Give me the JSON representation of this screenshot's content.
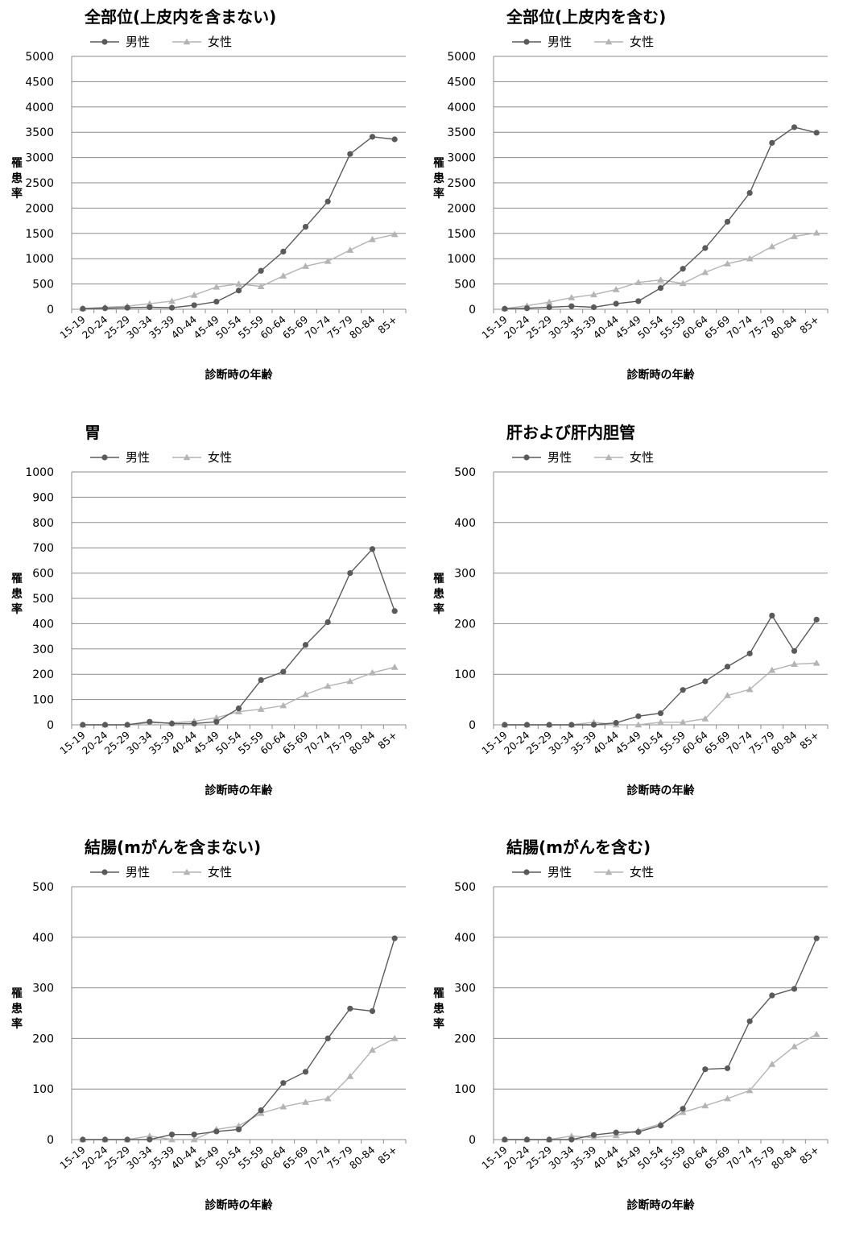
{
  "colors": {
    "male": "#5a5a5a",
    "female": "#b4b4b4",
    "grid": "#8c8c8c",
    "axis": "#8c8c8c"
  },
  "legend": {
    "male": "男性",
    "female": "女性"
  },
  "ylabel_chars": [
    "罹",
    "患",
    "率"
  ],
  "xlabel": "診断時の年齢",
  "categories": [
    "15-19",
    "20-24",
    "25-29",
    "30-34",
    "35-39",
    "40-44",
    "45-49",
    "50-54",
    "55-59",
    "60-64",
    "65-69",
    "70-74",
    "75-79",
    "80-84",
    "85+"
  ],
  "chart_data": [
    {
      "type": "line",
      "title": "全部位(上皮内を含まない)",
      "ylim": [
        0,
        5000
      ],
      "yticks": [
        0,
        500,
        1000,
        1500,
        2000,
        2500,
        3000,
        3500,
        4000,
        4500,
        5000
      ],
      "series": [
        {
          "name": "男性",
          "values": [
            10,
            20,
            30,
            40,
            30,
            80,
            150,
            370,
            760,
            1140,
            1630,
            2130,
            3070,
            3410,
            3360
          ]
        },
        {
          "name": "女性",
          "values": [
            15,
            40,
            60,
            110,
            160,
            280,
            440,
            500,
            450,
            660,
            850,
            950,
            1170,
            1380,
            1480
          ]
        }
      ]
    },
    {
      "type": "line",
      "title": "全部位(上皮内を含む)",
      "ylim": [
        0,
        5000
      ],
      "yticks": [
        0,
        500,
        1000,
        1500,
        2000,
        2500,
        3000,
        3500,
        4000,
        4500,
        5000
      ],
      "series": [
        {
          "name": "男性",
          "values": [
            10,
            20,
            40,
            60,
            40,
            110,
            160,
            420,
            800,
            1210,
            1730,
            2300,
            3290,
            3600,
            3490
          ]
        },
        {
          "name": "女性",
          "values": [
            15,
            70,
            140,
            230,
            290,
            390,
            530,
            580,
            510,
            730,
            900,
            1000,
            1240,
            1440,
            1510
          ]
        }
      ]
    },
    {
      "type": "line",
      "title": "胃",
      "ylim": [
        0,
        1000
      ],
      "yticks": [
        0,
        100,
        200,
        300,
        400,
        500,
        600,
        700,
        800,
        900,
        1000
      ],
      "series": [
        {
          "name": "男性",
          "values": [
            0,
            0,
            0,
            12,
            5,
            5,
            12,
            65,
            177,
            210,
            316,
            406,
            600,
            695,
            450
          ]
        },
        {
          "name": "女性",
          "values": [
            0,
            0,
            0,
            8,
            8,
            14,
            28,
            52,
            62,
            76,
            120,
            153,
            172,
            206,
            228
          ]
        }
      ]
    },
    {
      "type": "line",
      "title": "肝および肝内胆管",
      "ylim": [
        0,
        500
      ],
      "yticks": [
        0,
        100,
        200,
        300,
        400,
        500
      ],
      "series": [
        {
          "name": "男性",
          "values": [
            0,
            0,
            0,
            0,
            0,
            4,
            17,
            23,
            69,
            86,
            115,
            141,
            216,
            146,
            208
          ]
        },
        {
          "name": "女性",
          "values": [
            0,
            0,
            0,
            0,
            5,
            0,
            0,
            5,
            5,
            12,
            58,
            70,
            108,
            120,
            122
          ]
        }
      ]
    },
    {
      "type": "line",
      "title": "結腸(mがんを含まない)",
      "ylim": [
        0,
        500
      ],
      "yticks": [
        0,
        100,
        200,
        300,
        400,
        500
      ],
      "series": [
        {
          "name": "男性",
          "values": [
            0,
            0,
            0,
            0,
            10,
            10,
            16,
            20,
            58,
            112,
            134,
            200,
            259,
            254,
            398
          ]
        },
        {
          "name": "女性",
          "values": [
            0,
            0,
            0,
            7,
            0,
            0,
            20,
            27,
            52,
            65,
            74,
            81,
            125,
            177,
            200
          ]
        }
      ]
    },
    {
      "type": "line",
      "title": "結腸(mがんを含む)",
      "ylim": [
        0,
        500
      ],
      "yticks": [
        0,
        100,
        200,
        300,
        400,
        500
      ],
      "series": [
        {
          "name": "男性",
          "values": [
            0,
            0,
            0,
            0,
            9,
            14,
            15,
            28,
            61,
            139,
            141,
            234,
            285,
            298,
            398
          ]
        },
        {
          "name": "女性",
          "values": [
            0,
            0,
            0,
            7,
            4,
            8,
            18,
            31,
            54,
            67,
            81,
            97,
            149,
            184,
            208
          ]
        }
      ]
    }
  ]
}
